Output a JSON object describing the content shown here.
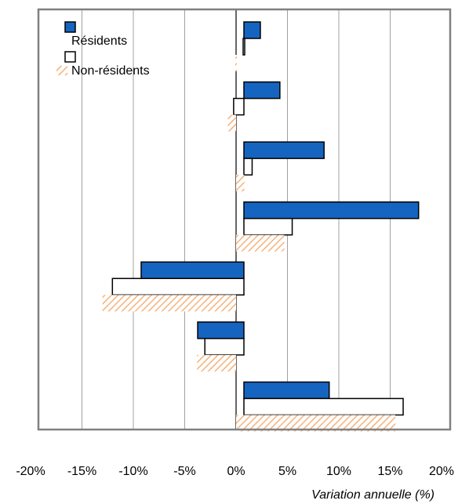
{
  "chart_data": {
    "type": "bar",
    "orientation": "horizontal",
    "title": "",
    "xlabel": "Variation annuelle (%)",
    "ylabel": "",
    "xlim": [
      -20,
      20
    ],
    "x_ticks": [
      "-20%",
      "-15%",
      "-10%",
      "-5%",
      "0%",
      "5%",
      "10%",
      "15%",
      "20%"
    ],
    "grid": "vertical",
    "legend_position": "top-left",
    "colors": {
      "residents": "#1565C0",
      "non_residents_hatch": "#F5B27A",
      "border": "#808080"
    },
    "categories": [
      "",
      "",
      "",
      "",
      "",
      "",
      ""
    ],
    "series": [
      {
        "name": "Résidents",
        "values": [
          1.6,
          3.5,
          7.8,
          17.0,
          -10.0,
          -4.5,
          8.3
        ]
      },
      {
        "name": "",
        "values": [
          -0.1,
          -1.0,
          0.8,
          4.7,
          -12.8,
          -3.8,
          15.5
        ]
      },
      {
        "name": "Non-résidents",
        "values": [
          0.0,
          -0.8,
          0.8,
          4.7,
          -13.0,
          -3.8,
          15.5
        ]
      }
    ]
  }
}
